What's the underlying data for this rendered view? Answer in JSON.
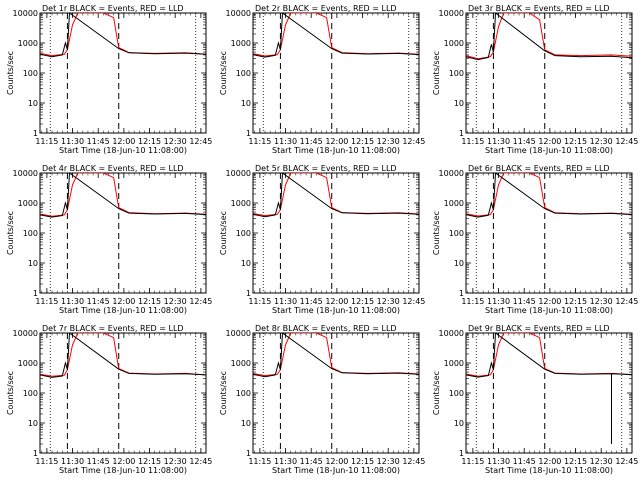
{
  "chart_data": [
    {
      "type": "line",
      "title": "Det 1r  BLACK = Events, RED = LLD",
      "xlabel": "Start Time (18-Jun-10 11:08:00)",
      "ylabel": "Counts/sec",
      "yscale": "log",
      "ylim": [
        1,
        10000
      ],
      "xlim": [
        11.183,
        12.8
      ],
      "xticks": [
        "11:15",
        "11:30",
        "11:45",
        "12:00",
        "12:15",
        "12:30",
        "12:45"
      ],
      "yticks": [
        "1",
        "10",
        "100",
        "1000",
        "10000"
      ],
      "dotted_lines": [
        11.283,
        12.7
      ],
      "dashed_lines": [
        11.45,
        11.95
      ],
      "series": [
        {
          "color": "#ff0000",
          "x": [
            11.183,
            11.3,
            11.42,
            11.45,
            11.5,
            11.55,
            11.7,
            11.8,
            11.9,
            11.95,
            12.05,
            12.3,
            12.6,
            12.8
          ],
          "y": [
            450,
            380,
            420,
            600,
            4000,
            10000,
            10000,
            10000,
            7000,
            700,
            480,
            450,
            470,
            420
          ]
        },
        {
          "color": "#000000",
          "x": [
            11.183,
            11.3,
            11.4,
            11.43,
            11.45,
            11.47,
            11.95,
            12.05,
            12.3,
            12.6,
            12.8
          ],
          "y": [
            420,
            350,
            400,
            1000,
            600,
            10000,
            650,
            470,
            440,
            460,
            420
          ]
        }
      ]
    },
    {
      "type": "line",
      "title": "Det 2r  BLACK = Events, RED = LLD",
      "xlabel": "Start Time (18-Jun-10 11:08:00)",
      "ylabel": "Counts/sec",
      "yscale": "log",
      "ylim": [
        1,
        10000
      ],
      "xlim": [
        11.183,
        12.8
      ],
      "xticks": [
        "11:15",
        "11:30",
        "11:45",
        "12:00",
        "12:15",
        "12:30",
        "12:45"
      ],
      "yticks": [
        "1",
        "10",
        "100",
        "1000",
        "10000"
      ],
      "dotted_lines": [
        11.283,
        12.7
      ],
      "dashed_lines": [
        11.45,
        11.95
      ],
      "series": [
        {
          "color": "#ff0000",
          "x": [
            11.183,
            11.3,
            11.42,
            11.45,
            11.5,
            11.55,
            11.7,
            11.8,
            11.9,
            11.95,
            12.05,
            12.3,
            12.6,
            12.8
          ],
          "y": [
            440,
            370,
            410,
            600,
            4000,
            10000,
            10000,
            10000,
            7000,
            700,
            480,
            440,
            460,
            420
          ]
        },
        {
          "color": "#000000",
          "x": [
            11.183,
            11.3,
            11.4,
            11.43,
            11.45,
            11.47,
            11.95,
            12.05,
            12.3,
            12.6,
            12.8
          ],
          "y": [
            410,
            340,
            390,
            1000,
            600,
            10000,
            650,
            460,
            430,
            450,
            410
          ]
        }
      ]
    },
    {
      "type": "line",
      "title": "Det 3r  BLACK = Events, RED = LLD",
      "xlabel": "Start Time (18-Jun-10 11:08:00)",
      "ylabel": "Counts/sec",
      "yscale": "log",
      "ylim": [
        1,
        10000
      ],
      "xlim": [
        11.183,
        12.8
      ],
      "xticks": [
        "11:15",
        "11:30",
        "11:45",
        "12:00",
        "12:15",
        "12:30",
        "12:45"
      ],
      "yticks": [
        "1",
        "10",
        "100",
        "1000",
        "10000"
      ],
      "dotted_lines": [
        11.283,
        12.7
      ],
      "dashed_lines": [
        11.45,
        11.95
      ],
      "series": [
        {
          "color": "#ff0000",
          "x": [
            11.183,
            11.3,
            11.42,
            11.45,
            11.5,
            11.55,
            11.7,
            11.8,
            11.9,
            11.95,
            12.05,
            12.3,
            12.6,
            12.8
          ],
          "y": [
            380,
            300,
            350,
            500,
            3500,
            10000,
            10000,
            10000,
            6000,
            600,
            400,
            380,
            400,
            360
          ]
        },
        {
          "color": "#000000",
          "x": [
            11.183,
            11.3,
            11.4,
            11.43,
            11.45,
            11.47,
            11.95,
            12.05,
            12.3,
            12.6,
            12.8
          ],
          "y": [
            350,
            280,
            330,
            900,
            500,
            10000,
            550,
            380,
            350,
            360,
            320
          ]
        }
      ]
    },
    {
      "type": "line",
      "title": "Det 4r  BLACK = Events, RED = LLD",
      "xlabel": "Start Time (18-Jun-10 11:08:00)",
      "ylabel": "Counts/sec",
      "yscale": "log",
      "ylim": [
        1,
        10000
      ],
      "xlim": [
        11.183,
        12.8
      ],
      "xticks": [
        "11:15",
        "11:30",
        "11:45",
        "12:00",
        "12:15",
        "12:30",
        "12:45"
      ],
      "yticks": [
        "1",
        "10",
        "100",
        "1000",
        "10000"
      ],
      "dotted_lines": [
        11.283,
        12.7
      ],
      "dashed_lines": [
        11.45,
        11.95
      ],
      "series": [
        {
          "color": "#ff0000",
          "x": [
            11.183,
            11.3,
            11.42,
            11.45,
            11.5,
            11.55,
            11.7,
            11.8,
            11.9,
            11.95,
            12.05,
            12.3,
            12.6,
            12.8
          ],
          "y": [
            430,
            360,
            400,
            600,
            4000,
            10000,
            10000,
            10000,
            7000,
            700,
            480,
            440,
            460,
            420
          ]
        },
        {
          "color": "#000000",
          "x": [
            11.183,
            11.3,
            11.4,
            11.43,
            11.45,
            11.47,
            11.95,
            12.05,
            12.3,
            12.6,
            12.8
          ],
          "y": [
            400,
            340,
            380,
            1000,
            600,
            10000,
            650,
            460,
            430,
            450,
            410
          ]
        }
      ]
    },
    {
      "type": "line",
      "title": "Det 5r  BLACK = Events, RED = LLD",
      "xlabel": "Start Time (18-Jun-10 11:08:00)",
      "ylabel": "Counts/sec",
      "yscale": "log",
      "ylim": [
        1,
        10000
      ],
      "xlim": [
        11.183,
        12.8
      ],
      "xticks": [
        "11:15",
        "11:30",
        "11:45",
        "12:00",
        "12:15",
        "12:30",
        "12:45"
      ],
      "yticks": [
        "1",
        "10",
        "100",
        "1000",
        "10000"
      ],
      "dotted_lines": [
        11.283,
        12.7
      ],
      "dashed_lines": [
        11.45,
        11.95
      ],
      "series": [
        {
          "color": "#ff0000",
          "x": [
            11.183,
            11.3,
            11.42,
            11.45,
            11.5,
            11.55,
            11.7,
            11.8,
            11.9,
            11.95,
            12.05,
            12.3,
            12.6,
            12.8
          ],
          "y": [
            450,
            380,
            420,
            600,
            4000,
            10000,
            10000,
            10000,
            7000,
            700,
            480,
            450,
            470,
            430
          ]
        },
        {
          "color": "#000000",
          "x": [
            11.183,
            11.3,
            11.4,
            11.43,
            11.45,
            11.47,
            11.95,
            12.05,
            12.3,
            12.6,
            12.8
          ],
          "y": [
            420,
            350,
            400,
            1000,
            600,
            10000,
            650,
            470,
            440,
            460,
            420
          ]
        }
      ]
    },
    {
      "type": "line",
      "title": "Det 6r  BLACK = Events, RED = LLD",
      "xlabel": "Start Time (18-Jun-10 11:08:00)",
      "ylabel": "Counts/sec",
      "yscale": "log",
      "ylim": [
        1,
        10000
      ],
      "xlim": [
        11.183,
        12.8
      ],
      "xticks": [
        "11:15",
        "11:30",
        "11:45",
        "12:00",
        "12:15",
        "12:30",
        "12:45"
      ],
      "yticks": [
        "1",
        "10",
        "100",
        "1000",
        "10000"
      ],
      "dotted_lines": [
        11.283,
        12.7
      ],
      "dashed_lines": [
        11.45,
        11.95
      ],
      "series": [
        {
          "color": "#ff0000",
          "x": [
            11.183,
            11.3,
            11.42,
            11.45,
            11.5,
            11.55,
            11.7,
            11.8,
            11.9,
            11.95,
            12.05,
            12.3,
            12.6,
            12.8
          ],
          "y": [
            440,
            370,
            410,
            600,
            4000,
            10000,
            10000,
            10000,
            7000,
            700,
            470,
            440,
            460,
            420
          ]
        },
        {
          "color": "#000000",
          "x": [
            11.183,
            11.3,
            11.4,
            11.43,
            11.45,
            11.47,
            11.95,
            12.05,
            12.3,
            12.6,
            12.8
          ],
          "y": [
            410,
            340,
            390,
            1000,
            600,
            10000,
            650,
            460,
            430,
            450,
            410
          ]
        }
      ]
    },
    {
      "type": "line",
      "title": "Det 7r  BLACK = Events, RED = LLD",
      "xlabel": "Start Time (18-Jun-10 11:08:00)",
      "ylabel": "Counts/sec",
      "yscale": "log",
      "ylim": [
        1,
        10000
      ],
      "xlim": [
        11.183,
        12.8
      ],
      "xticks": [
        "11:15",
        "11:30",
        "11:45",
        "12:00",
        "12:15",
        "12:30",
        "12:45"
      ],
      "yticks": [
        "1",
        "10",
        "100",
        "1000",
        "10000"
      ],
      "dotted_lines": [
        11.283,
        12.7
      ],
      "dashed_lines": [
        11.45,
        11.95
      ],
      "series": [
        {
          "color": "#ff0000",
          "x": [
            11.183,
            11.3,
            11.42,
            11.45,
            11.5,
            11.55,
            11.7,
            11.8,
            11.9,
            11.95,
            12.05,
            12.3,
            12.6,
            12.8
          ],
          "y": [
            420,
            360,
            390,
            600,
            4000,
            10000,
            10000,
            10000,
            7000,
            650,
            460,
            430,
            450,
            400
          ]
        },
        {
          "color": "#000000",
          "x": [
            11.183,
            11.3,
            11.4,
            11.43,
            11.45,
            11.47,
            11.95,
            12.05,
            12.3,
            12.6,
            12.8
          ],
          "y": [
            400,
            330,
            370,
            1000,
            600,
            10000,
            620,
            450,
            420,
            440,
            400
          ]
        }
      ]
    },
    {
      "type": "line",
      "title": "Det 8r  BLACK = Events, RED = LLD",
      "xlabel": "Start Time (18-Jun-10 11:08:00)",
      "ylabel": "Counts/sec",
      "yscale": "log",
      "ylim": [
        1,
        10000
      ],
      "xlim": [
        11.183,
        12.8
      ],
      "xticks": [
        "11:15",
        "11:30",
        "11:45",
        "12:00",
        "12:15",
        "12:30",
        "12:45"
      ],
      "yticks": [
        "1",
        "10",
        "100",
        "1000",
        "10000"
      ],
      "dotted_lines": [
        11.283,
        12.7
      ],
      "dashed_lines": [
        11.45,
        11.95
      ],
      "series": [
        {
          "color": "#ff0000",
          "x": [
            11.183,
            11.3,
            11.42,
            11.45,
            11.5,
            11.55,
            11.7,
            11.8,
            11.9,
            11.95,
            12.05,
            12.3,
            12.6,
            12.8
          ],
          "y": [
            450,
            380,
            420,
            600,
            4000,
            10000,
            10000,
            10000,
            7000,
            700,
            480,
            450,
            470,
            430
          ]
        },
        {
          "color": "#000000",
          "x": [
            11.183,
            11.3,
            11.4,
            11.43,
            11.45,
            11.47,
            11.95,
            12.05,
            12.3,
            12.6,
            12.8
          ],
          "y": [
            420,
            350,
            400,
            1000,
            600,
            10000,
            650,
            470,
            440,
            460,
            420
          ]
        }
      ]
    },
    {
      "type": "line",
      "title": "Det 9r  BLACK = Events, RED = LLD",
      "xlabel": "Start Time (18-Jun-10 11:08:00)",
      "ylabel": "Counts/sec",
      "yscale": "log",
      "ylim": [
        1,
        10000
      ],
      "xlim": [
        11.183,
        12.8
      ],
      "xticks": [
        "11:15",
        "11:30",
        "11:45",
        "12:00",
        "12:15",
        "12:30",
        "12:45"
      ],
      "yticks": [
        "1",
        "10",
        "100",
        "1000",
        "10000"
      ],
      "dotted_lines": [
        11.283,
        12.7
      ],
      "dashed_lines": [
        11.45,
        11.95
      ],
      "series": [
        {
          "color": "#ff0000",
          "x": [
            11.183,
            11.3,
            11.42,
            11.45,
            11.5,
            11.55,
            11.7,
            11.8,
            11.9,
            11.95,
            12.05,
            12.3,
            12.6,
            12.8
          ],
          "y": [
            430,
            360,
            400,
            600,
            4000,
            10000,
            10000,
            10000,
            7000,
            650,
            460,
            430,
            450,
            410
          ]
        },
        {
          "color": "#000000",
          "x": [
            11.183,
            11.3,
            11.4,
            11.43,
            11.45,
            11.47,
            11.95,
            12.05,
            12.3,
            12.6,
            12.6,
            12.6,
            12.8
          ],
          "y": [
            400,
            340,
            380,
            1000,
            600,
            10000,
            620,
            450,
            420,
            440,
            2,
            440,
            410
          ]
        }
      ]
    }
  ]
}
